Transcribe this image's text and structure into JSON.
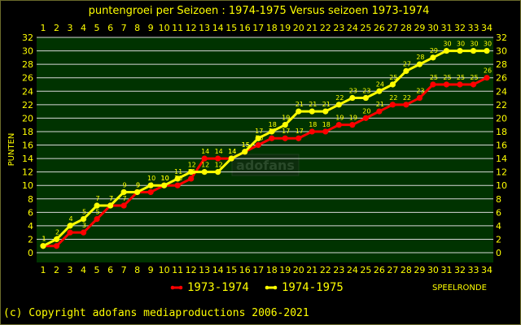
{
  "chart_data": {
    "type": "line",
    "title": "puntengroei per Seizoen : 1974-1975 Versus seizoen 1973-1974",
    "xlabel": "SPEELRONDE",
    "ylabel": "PUNTEN",
    "x": [
      1,
      2,
      3,
      4,
      5,
      6,
      7,
      8,
      9,
      10,
      11,
      12,
      13,
      14,
      15,
      16,
      17,
      18,
      19,
      20,
      21,
      22,
      23,
      24,
      25,
      26,
      27,
      28,
      29,
      30,
      31,
      32,
      33,
      34
    ],
    "xlim": [
      1,
      34
    ],
    "ylim": [
      0,
      32
    ],
    "yticks": [
      0,
      2,
      4,
      6,
      8,
      10,
      12,
      14,
      16,
      18,
      20,
      22,
      24,
      26,
      28,
      30,
      32
    ],
    "grid": true,
    "legend_position": "bottom",
    "series": [
      {
        "name": "1973-1974",
        "color": "#ff0000",
        "values": [
          1,
          1,
          3,
          3,
          5,
          7,
          7,
          9,
          9,
          10,
          10,
          11,
          14,
          14,
          14,
          15,
          16,
          17,
          17,
          17,
          18,
          18,
          19,
          19,
          20,
          21,
          22,
          22,
          23,
          25,
          25,
          25,
          25,
          26
        ]
      },
      {
        "name": "1974-1975",
        "color": "#ffff00",
        "values": [
          1,
          2,
          4,
          5,
          7,
          7,
          9,
          9,
          10,
          10,
          11,
          12,
          12,
          12,
          14,
          15,
          17,
          18,
          19,
          21,
          21,
          21,
          22,
          23,
          23,
          24,
          25,
          27,
          28,
          29,
          30,
          30,
          30,
          30
        ]
      }
    ]
  },
  "watermark": "adofans",
  "copyright": "(c) Copyright adofans mediaproductions 2006-2021",
  "colors": {
    "plot_background": "#003300",
    "text": "#ffff00",
    "grid": "#d8d8d8"
  }
}
